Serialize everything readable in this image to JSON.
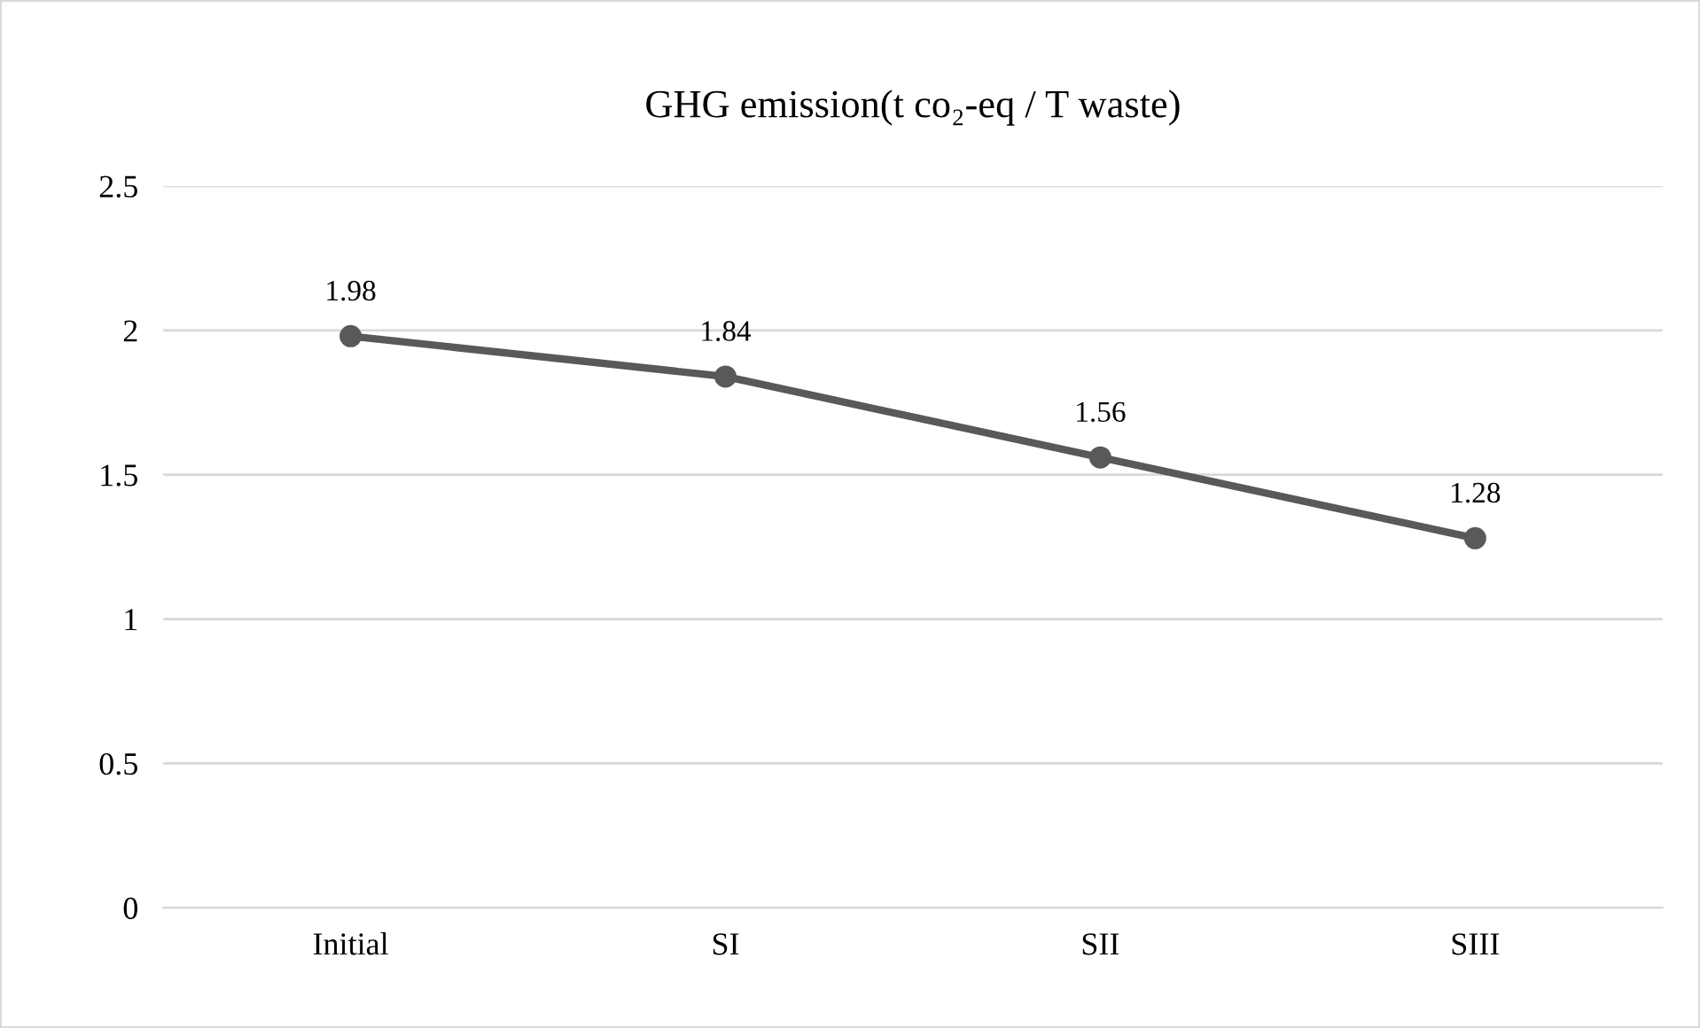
{
  "chart_data": {
    "type": "line",
    "title": "GHG emission(t co₂-eq / T waste)",
    "categories": [
      "Initial",
      "SI",
      "SII",
      "SIII"
    ],
    "series": [
      {
        "color": "#595959",
        "values": [
          1.98,
          1.84,
          1.56,
          1.28
        ]
      }
    ],
    "ylim": [
      0,
      2.5
    ],
    "yticks": [
      0,
      0.5,
      1,
      1.5,
      2,
      2.5
    ],
    "grid": "y",
    "marker": "circle",
    "line_style": "solid",
    "data_labels": true,
    "legend": false
  }
}
